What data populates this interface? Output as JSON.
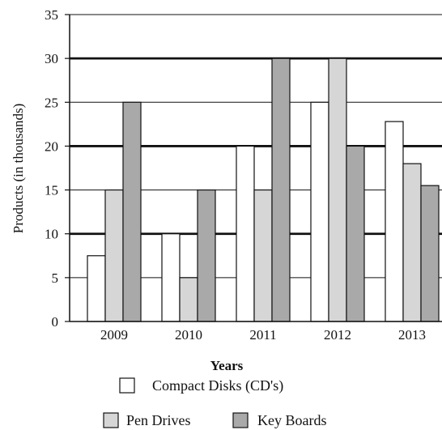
{
  "chart_data": {
    "type": "bar",
    "title": "",
    "xlabel": "Years",
    "ylabel": "Products (in thousands)",
    "ylim": [
      0,
      35
    ],
    "yticks": [
      0,
      5,
      10,
      15,
      20,
      25,
      30,
      35
    ],
    "categories": [
      "2009",
      "2010",
      "2011",
      "2012",
      "2013"
    ],
    "series": [
      {
        "name": "Compact Disks (CD's)",
        "values": [
          7.5,
          10,
          20,
          25,
          22.8
        ],
        "color": "#ffffff"
      },
      {
        "name": "Pen Drives",
        "values": [
          15,
          5,
          15,
          30,
          18
        ],
        "color": "#d6d6d6"
      },
      {
        "name": "Key Boards",
        "values": [
          25,
          15,
          30,
          20,
          15.5
        ],
        "color": "#a9a9a9"
      }
    ],
    "grid": true,
    "legend_position": "bottom"
  }
}
